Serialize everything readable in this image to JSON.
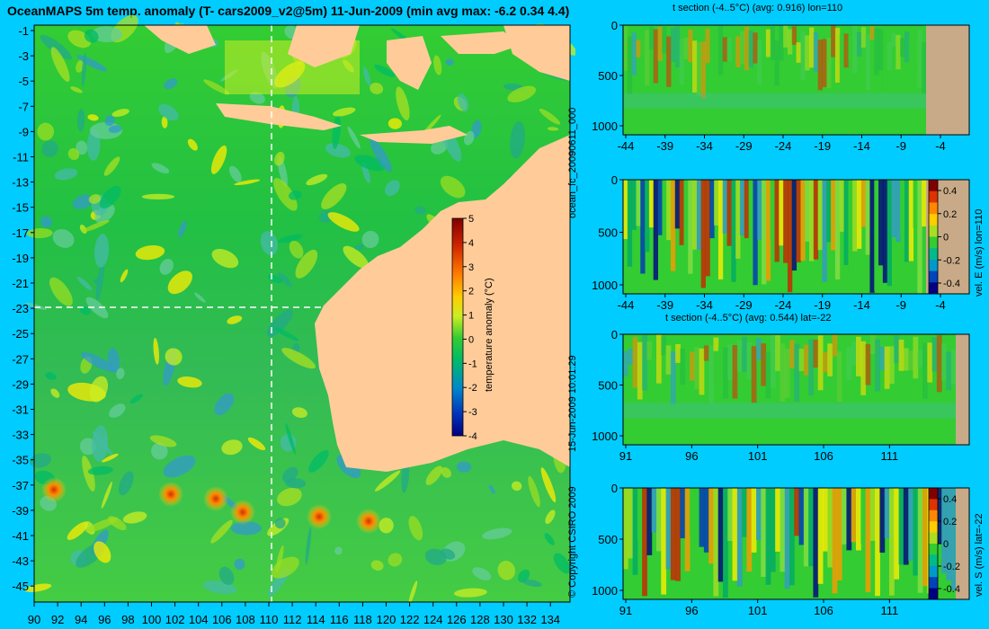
{
  "title": "OceanMAPS 5m temp. anomaly (T- cars2009_v2@5m) 11-Jun-2009 (min avg max: -6.2 0.34 4.4)",
  "map": {
    "lat_ticks": [
      "-1",
      "-3",
      "-5",
      "-7",
      "-9",
      "-11",
      "-13",
      "-15",
      "-17",
      "-19",
      "-21",
      "-23",
      "-25",
      "-27",
      "-29",
      "-31",
      "-33",
      "-35",
      "-37",
      "-39",
      "-41",
      "-43",
      "-45"
    ],
    "lon_ticks": [
      "90",
      "92",
      "94",
      "96",
      "98",
      "100",
      "102",
      "104",
      "106",
      "108",
      "110",
      "112",
      "114",
      "116",
      "118",
      "120",
      "122",
      "124",
      "126",
      "128",
      "130",
      "132",
      "134"
    ],
    "cursor": {
      "lon": 110,
      "lat": -22
    },
    "colorbar": {
      "label": "temperature anomaly (°C)",
      "ticks": [
        "5",
        "4",
        "3",
        "2",
        "1",
        "0",
        "-1",
        "-2",
        "-3",
        "-4"
      ],
      "colors": [
        "#800000",
        "#cc2200",
        "#ff7700",
        "#ffcc00",
        "#ccee22",
        "#33cc33",
        "#00bb66",
        "#0088cc",
        "#0033bb",
        "#000080"
      ]
    }
  },
  "panels": {
    "p1": {
      "title": "t section (-4..5°C) (avg: 0.916) lon=110",
      "x_ticks": [
        "-44",
        "-39",
        "-34",
        "-29",
        "-24",
        "-19",
        "-14",
        "-9",
        "-4"
      ],
      "y_ticks": [
        "0",
        "500",
        "1000"
      ]
    },
    "p2": {
      "x_ticks": [
        "-44",
        "-39",
        "-34",
        "-29",
        "-24",
        "-19",
        "-14",
        "-9",
        "-4"
      ],
      "y_ticks": [
        "0",
        "500",
        "1000"
      ],
      "cb_label": "vel. E (m/s) lon=110",
      "cb_ticks": [
        "0.4",
        "0.2",
        "0",
        "-0.2",
        "-0.4"
      ]
    },
    "p3": {
      "title": "t section (-4..5°C) (avg: 0.544) lat=-22",
      "x_ticks": [
        "91",
        "96",
        "101",
        "106",
        "111"
      ],
      "y_ticks": [
        "0",
        "500",
        "1000"
      ]
    },
    "p4": {
      "x_ticks": [
        "91",
        "96",
        "101",
        "106",
        "111"
      ],
      "y_ticks": [
        "0",
        "500",
        "1000"
      ],
      "cb_label": "vel. S (m/s) lat=-22",
      "cb_ticks": [
        "0.4",
        "0.2",
        "0",
        "-0.2",
        "-0.4"
      ]
    }
  },
  "side_labels": {
    "run_id": "ocean_fc_20090611_000",
    "timestamp": "15-Jun-2009 10:01:29",
    "copyright": "© Copyright CSIRO 2009"
  },
  "colors": {
    "background": "#00ccff",
    "land": "#ffcc99",
    "section_land": "#c8aa88"
  }
}
